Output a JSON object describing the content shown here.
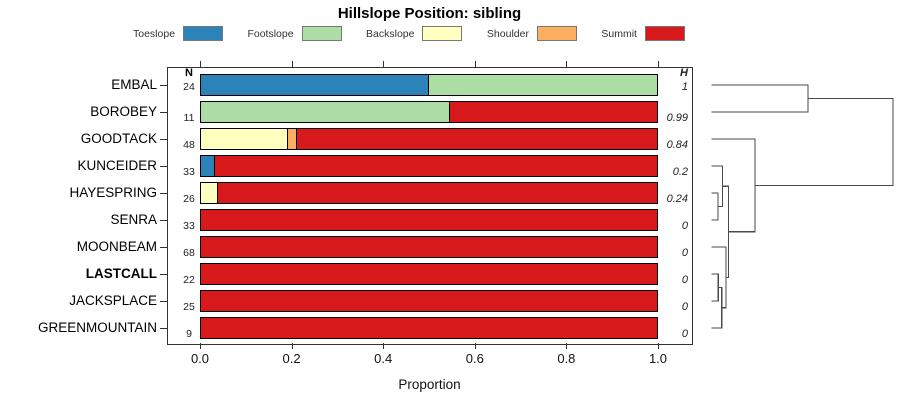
{
  "title": "Hillslope Position: sibling",
  "xlabel": "Proportion",
  "n_header": "N",
  "h_header": "H",
  "legend": [
    {
      "label": "Toeslope",
      "color": "#2B83BA"
    },
    {
      "label": "Footslope",
      "color": "#ABDDA4"
    },
    {
      "label": "Backslope",
      "color": "#FFFFBF"
    },
    {
      "label": "Shoulder",
      "color": "#FDAE61"
    },
    {
      "label": "Summit",
      "color": "#D7191C"
    }
  ],
  "chart_data": {
    "type": "bar",
    "subtype": "horizontal-stacked-proportion",
    "title": "Hillslope Position: sibling",
    "xlabel": "Proportion",
    "xlim": [
      0,
      1
    ],
    "x_ticks": [
      "0.0",
      "0.2",
      "0.4",
      "0.6",
      "0.8",
      "1.0"
    ],
    "categories": [
      "Toeslope",
      "Footslope",
      "Backslope",
      "Shoulder",
      "Summit"
    ],
    "palette": {
      "Toeslope": "#2B83BA",
      "Footslope": "#ABDDA4",
      "Backslope": "#FFFFBF",
      "Shoulder": "#FDAE61",
      "Summit": "#D7191C"
    },
    "rows": [
      {
        "label": "EMBAL",
        "bold": false,
        "n": 24,
        "h": "1",
        "segments": [
          [
            "Toeslope",
            0.5
          ],
          [
            "Footslope",
            0.5
          ]
        ]
      },
      {
        "label": "BOROBEY",
        "bold": false,
        "n": 11,
        "h": "0.99",
        "segments": [
          [
            "Footslope",
            0.545
          ],
          [
            "Summit",
            0.455
          ]
        ]
      },
      {
        "label": "GOODTACK",
        "bold": false,
        "n": 48,
        "h": "0.84",
        "segments": [
          [
            "Backslope",
            0.19
          ],
          [
            "Shoulder",
            0.021
          ],
          [
            "Summit",
            0.789
          ]
        ]
      },
      {
        "label": "KUNCEIDER",
        "bold": false,
        "n": 33,
        "h": "0.2",
        "segments": [
          [
            "Toeslope",
            0.03
          ],
          [
            "Summit",
            0.97
          ]
        ]
      },
      {
        "label": "HAYESPRING",
        "bold": false,
        "n": 26,
        "h": "0.24",
        "segments": [
          [
            "Backslope",
            0.038
          ],
          [
            "Summit",
            0.962
          ]
        ]
      },
      {
        "label": "SENRA",
        "bold": false,
        "n": 33,
        "h": "0",
        "segments": [
          [
            "Summit",
            1.0
          ]
        ]
      },
      {
        "label": "MOONBEAM",
        "bold": false,
        "n": 68,
        "h": "0",
        "segments": [
          [
            "Summit",
            1.0
          ]
        ]
      },
      {
        "label": "LASTCALL",
        "bold": true,
        "n": 22,
        "h": "0",
        "segments": [
          [
            "Summit",
            1.0
          ]
        ]
      },
      {
        "label": "JACKSPLACE",
        "bold": false,
        "n": 25,
        "h": "0",
        "segments": [
          [
            "Summit",
            1.0
          ]
        ]
      },
      {
        "label": "GREENMOUNTAIN",
        "bold": false,
        "n": 9,
        "h": "0",
        "segments": [
          [
            "Summit",
            1.0
          ]
        ]
      }
    ],
    "dendrogram": {
      "note": "right-side cluster tree; leaves are row indices 0-9, height is merge distance fraction of max",
      "merges": [
        {
          "id": "m0",
          "a": 4,
          "b": 5,
          "height": 0.035
        },
        {
          "id": "m1",
          "a": 7,
          "b": 8,
          "height": 0.036
        },
        {
          "id": "m2",
          "a": "m1",
          "b": 9,
          "height": 0.055
        },
        {
          "id": "m3",
          "a": 3,
          "b": "m0",
          "height": 0.06
        },
        {
          "id": "m4",
          "a": 6,
          "b": "m2",
          "height": 0.079
        },
        {
          "id": "m5",
          "a": "m3",
          "b": "m4",
          "height": 0.092
        },
        {
          "id": "m6",
          "a": 2,
          "b": "m5",
          "height": 0.239
        },
        {
          "id": "m7",
          "a": 0,
          "b": 1,
          "height": 0.531
        },
        {
          "id": "m8",
          "a": "m7",
          "b": "m6",
          "height": 1.0
        }
      ]
    }
  }
}
